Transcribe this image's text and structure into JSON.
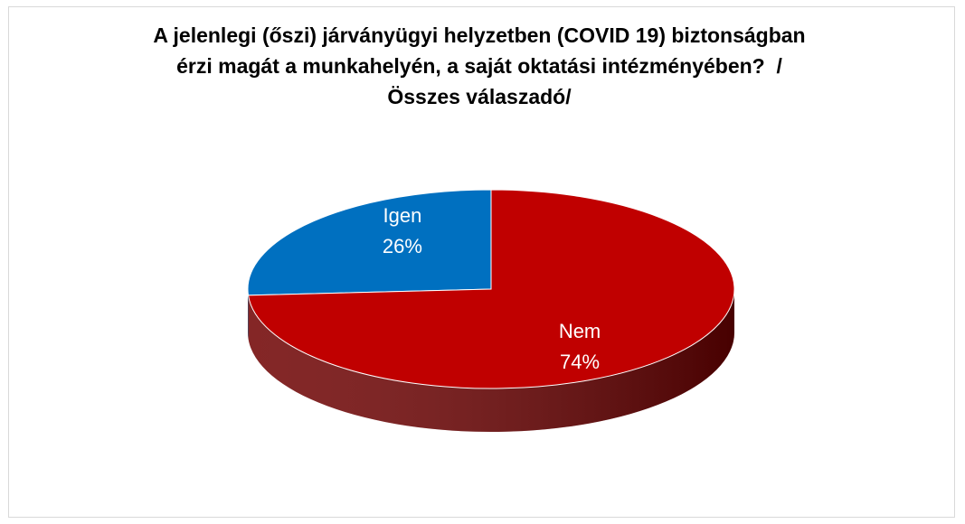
{
  "chart_data": {
    "type": "pie3d",
    "title": "A jelenlegi (őszi) járványügyi helyzetben (COVID 19) biztonságban érzi magát a munkahelyén, a saját oktatási intézményében?  /Összes válaszadó/",
    "categories": [
      "Igen",
      "Nem"
    ],
    "values": [
      26,
      74
    ],
    "value_labels": [
      "26%",
      "74%"
    ],
    "colors": [
      "#0070c0",
      "#c00000"
    ],
    "side_colors": [
      "#003f73",
      "#6e0000"
    ]
  }
}
